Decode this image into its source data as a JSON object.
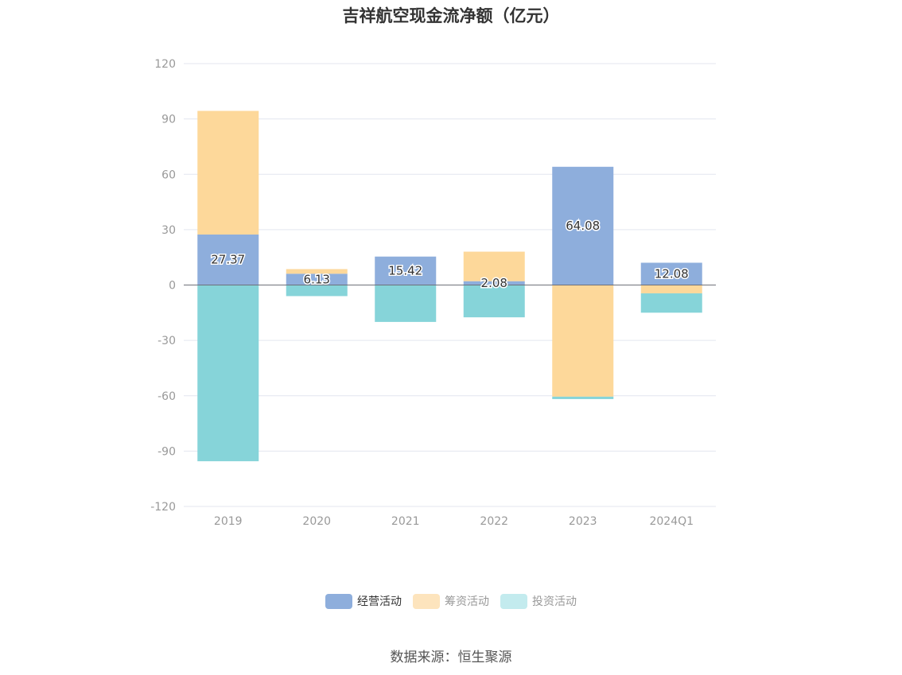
{
  "title": "吉祥航空现金流净额（亿元）",
  "source": "数据来源：恒生聚源",
  "chart_data": {
    "type": "bar",
    "stacked": true,
    "categories": [
      "2019",
      "2020",
      "2021",
      "2022",
      "2023",
      "2024Q1"
    ],
    "series": [
      {
        "name": "经营活动",
        "color": "#8eaedc",
        "values": [
          27.37,
          6.13,
          15.42,
          2.08,
          64.08,
          12.08
        ],
        "labels_shown": true
      },
      {
        "name": "筹资活动",
        "color": "#fdd89a",
        "values": [
          67.0,
          2.5,
          0.0,
          16.0,
          -60.5,
          -4.5
        ],
        "labels_shown": false
      },
      {
        "name": "投资活动",
        "color": "#86d4d9",
        "values": [
          -95.5,
          -6.0,
          -20.0,
          -17.5,
          -1.3,
          -10.5
        ],
        "labels_shown": false
      }
    ],
    "yticks": [
      120,
      90,
      60,
      30,
      0,
      -30,
      -60,
      -90,
      -120
    ],
    "ylim": [
      -120,
      120
    ],
    "grid": true,
    "legend_position": "bottom"
  },
  "legend": [
    {
      "label": "经营活动",
      "color": "#8eaedc",
      "text_color": "#333333"
    },
    {
      "label": "筹资活动",
      "color": "#fde4bd",
      "text_color": "#999999"
    },
    {
      "label": "投资活动",
      "color": "#c3ebee",
      "text_color": "#999999"
    }
  ]
}
